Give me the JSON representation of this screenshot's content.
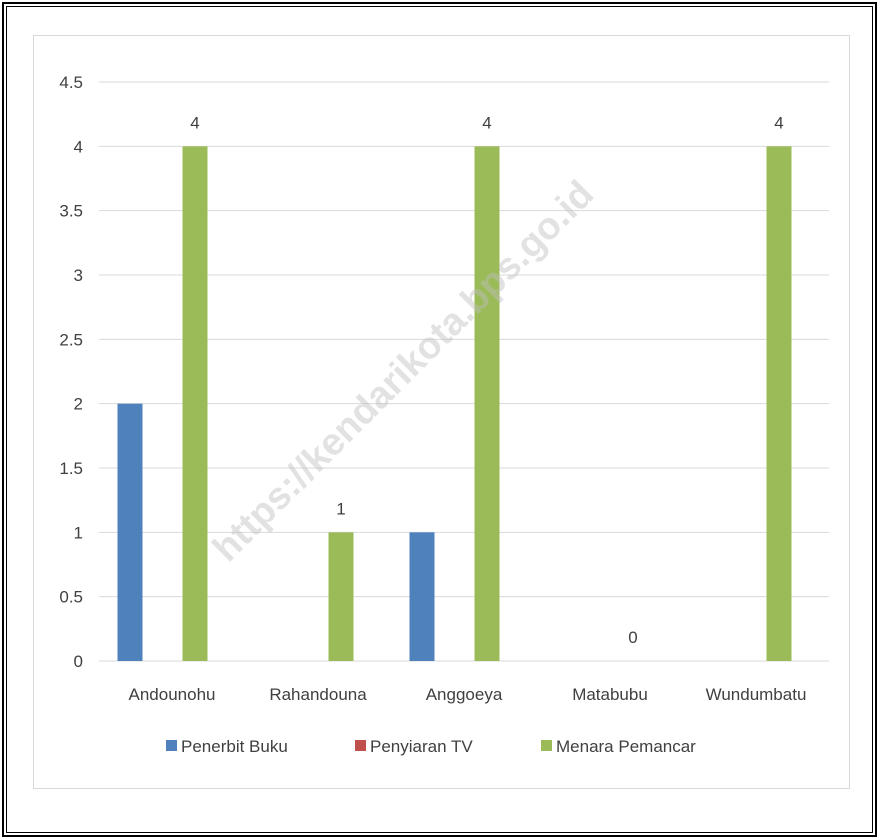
{
  "chart_data": {
    "type": "bar",
    "categories": [
      "Andounohu",
      "Rahandouna",
      "Anggoeya",
      "Matabubu",
      "Wundumbatu"
    ],
    "series": [
      {
        "name": "Penerbit Buku",
        "color": "#4f81bd",
        "values": [
          2,
          0,
          1,
          0,
          0
        ]
      },
      {
        "name": "Penyiaran TV",
        "color": "#c0504d",
        "values": [
          0,
          0,
          0,
          0,
          0
        ]
      },
      {
        "name": "Menara Pemancar",
        "color": "#9bbb59",
        "values": [
          4,
          1,
          4,
          0,
          4
        ]
      }
    ],
    "ylim": [
      0,
      4.5
    ],
    "yticks": [
      "0",
      "0.5",
      "1",
      "1.5",
      "2",
      "2.5",
      "3",
      "3.5",
      "4",
      "4.5"
    ],
    "data_labels": {
      "series": "Menara Pemancar",
      "values": [
        "4",
        "1",
        "4",
        "0",
        "4"
      ]
    },
    "grid": true,
    "legend_position": "bottom",
    "watermark": "https://kendarikota.bps.go.id",
    "gridline_color": "#d9d9d9"
  }
}
